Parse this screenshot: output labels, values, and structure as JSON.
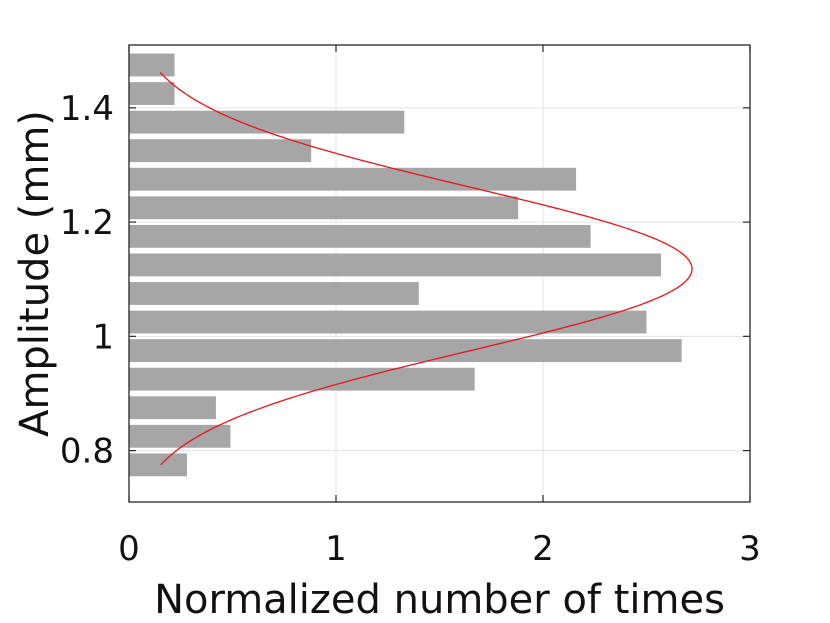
{
  "chart_data": {
    "type": "bar",
    "orientation": "horizontal",
    "title": "",
    "xlabel": "Normalized number of times",
    "ylabel": "Amplitude (mm)",
    "xlim": [
      0,
      3
    ],
    "ylim": [
      0.71,
      1.51
    ],
    "x_ticks": [
      "0",
      "1",
      "2",
      "3"
    ],
    "y_ticks": [
      "0.8",
      "1",
      "1.2",
      "1.4"
    ],
    "grid": true,
    "bar_height": 0.04,
    "bar_color": "#a6a6a6",
    "bins": [
      {
        "y": 0.775,
        "value": 0.28
      },
      {
        "y": 0.825,
        "value": 0.49
      },
      {
        "y": 0.875,
        "value": 0.42
      },
      {
        "y": 0.925,
        "value": 1.67
      },
      {
        "y": 0.975,
        "value": 2.67
      },
      {
        "y": 1.025,
        "value": 2.5
      },
      {
        "y": 1.075,
        "value": 1.4
      },
      {
        "y": 1.125,
        "value": 2.57
      },
      {
        "y": 1.175,
        "value": 2.23
      },
      {
        "y": 1.225,
        "value": 1.88
      },
      {
        "y": 1.275,
        "value": 2.16
      },
      {
        "y": 1.325,
        "value": 0.88
      },
      {
        "y": 1.375,
        "value": 1.33
      },
      {
        "y": 1.425,
        "value": 0.22
      },
      {
        "y": 1.475,
        "value": 0.22
      }
    ],
    "fit_curve": {
      "color": "#e8141c",
      "type": "normal",
      "mean": 1.118,
      "sigma": 0.143,
      "peak": 2.72,
      "y_range": [
        0.775,
        1.462
      ]
    }
  }
}
